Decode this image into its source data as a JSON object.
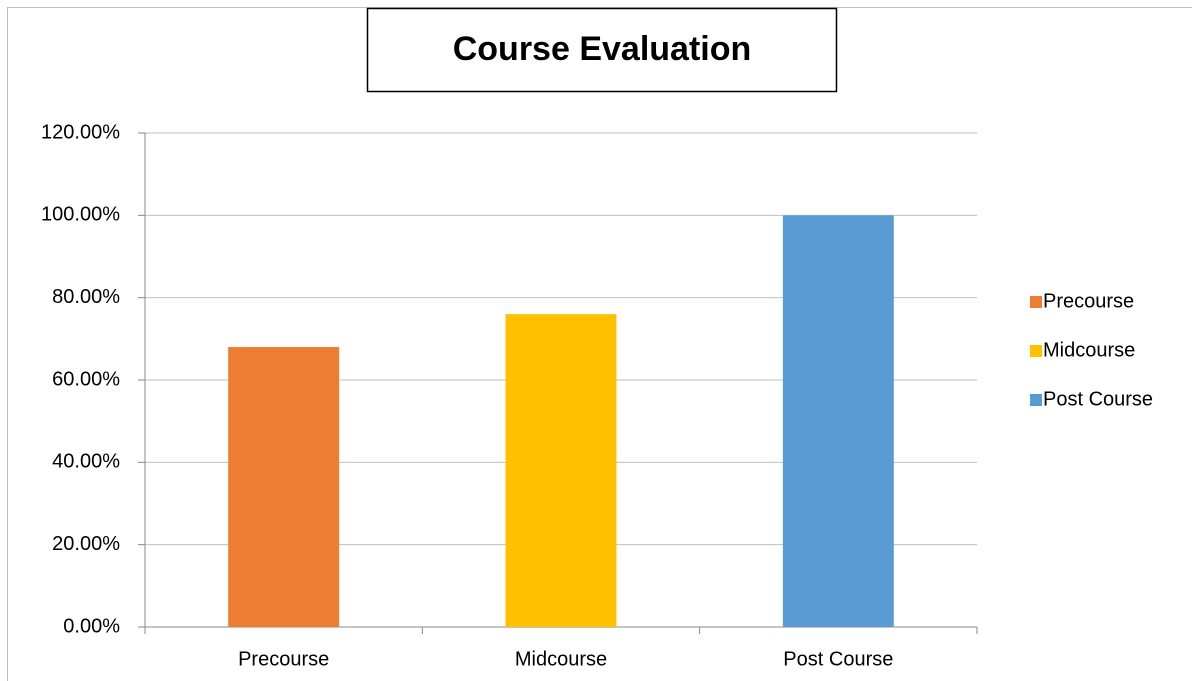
{
  "chart_data": {
    "type": "bar",
    "title": "Course Evaluation",
    "categories": [
      "Precourse",
      "Midcourse",
      "Post Course"
    ],
    "values": [
      68,
      76,
      100
    ],
    "colors": [
      "#ed7d31",
      "#ffc000",
      "#5b9bd5"
    ],
    "ylim": [
      0,
      120
    ],
    "yticks": [
      {
        "value": 0,
        "label": "0.00%"
      },
      {
        "value": 20,
        "label": "20.00%"
      },
      {
        "value": 40,
        "label": "40.00%"
      },
      {
        "value": 60,
        "label": "60.00%"
      },
      {
        "value": 80,
        "label": "80.00%"
      },
      {
        "value": 100,
        "label": "100.00%"
      },
      {
        "value": 120,
        "label": "120.00%"
      }
    ],
    "grid": true,
    "legend": "right"
  }
}
